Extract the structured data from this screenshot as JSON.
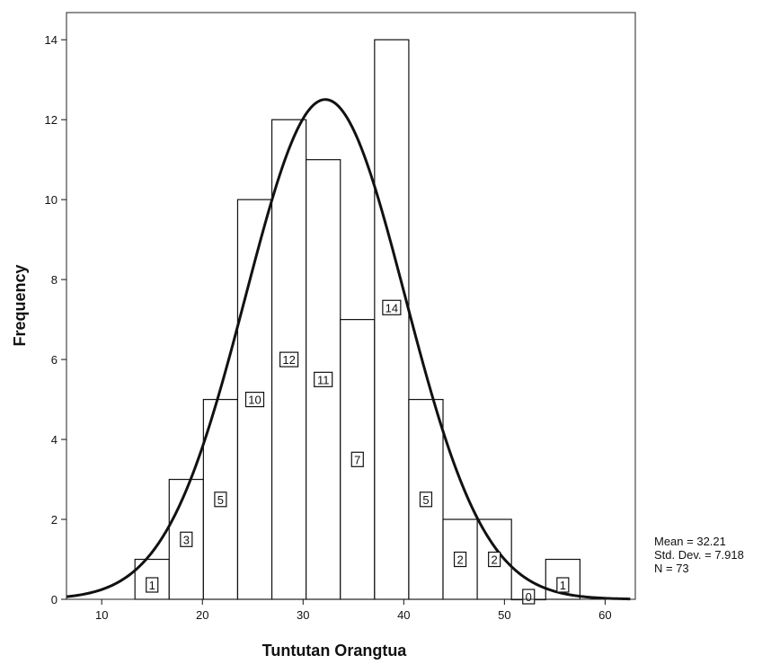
{
  "chart_data": {
    "type": "bar",
    "title": "",
    "xlabel": "Tuntutan Orangtua",
    "ylabel": "Frequency",
    "bin_width": 3.4,
    "bins": [
      {
        "center": 15.0,
        "value": 1
      },
      {
        "center": 18.4,
        "value": 3
      },
      {
        "center": 21.8,
        "value": 5
      },
      {
        "center": 25.2,
        "value": 10
      },
      {
        "center": 28.6,
        "value": 12
      },
      {
        "center": 32.0,
        "value": 11
      },
      {
        "center": 35.4,
        "value": 7
      },
      {
        "center": 38.8,
        "value": 14
      },
      {
        "center": 42.2,
        "value": 5
      },
      {
        "center": 45.6,
        "value": 2
      },
      {
        "center": 49.0,
        "value": 2
      },
      {
        "center": 52.4,
        "value": 0
      },
      {
        "center": 55.8,
        "value": 1
      }
    ],
    "xlim": [
      6.5,
      63
    ],
    "ylim": [
      0,
      14.5
    ],
    "xticks": [
      10,
      20,
      30,
      40,
      50,
      60
    ],
    "yticks": [
      0,
      2,
      4,
      6,
      8,
      10,
      12,
      14
    ],
    "normal_curve": {
      "mean": 32.21,
      "std": 7.918,
      "n": 73
    },
    "stats": {
      "mean_text": "Mean = 32.21",
      "std_text": "Std. Dev. = 7.918",
      "n_text": "N = 73"
    }
  }
}
